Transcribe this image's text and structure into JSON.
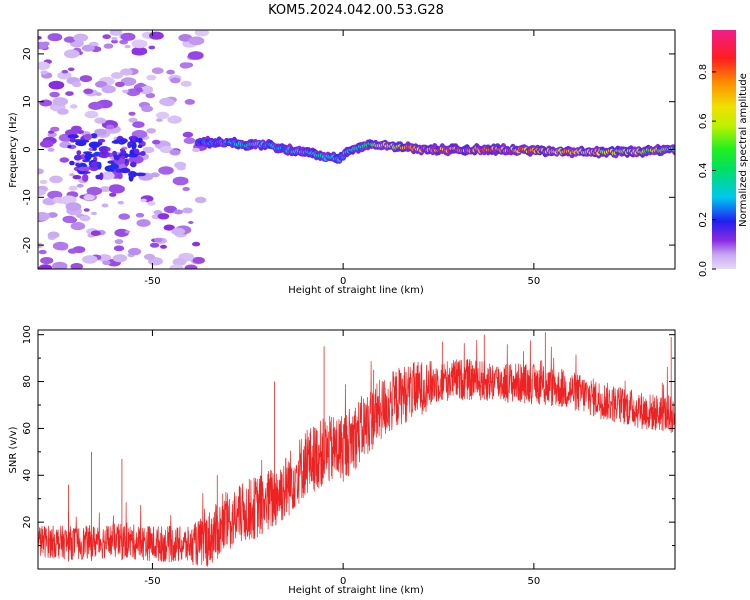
{
  "figure": {
    "title": "KOM5.2024.042.00.53.G28"
  },
  "chart_data": [
    {
      "type": "heatmap",
      "xlabel": "Height of straight line (km)",
      "ylabel": "Frequency (Hz)",
      "xlim": [
        -80,
        87
      ],
      "ylim": [
        -25,
        25
      ],
      "x_ticks": [
        -50,
        0,
        50
      ],
      "y_ticks": [
        -20,
        -10,
        0,
        10,
        20
      ],
      "colorbar": {
        "label": "Normalized spectral amplitude",
        "range": [
          0.0,
          0.97
        ],
        "ticks": [
          0.0,
          0.2,
          0.4,
          0.6,
          0.8
        ],
        "tick_labels": [
          "0.0",
          "0.2",
          "0.4",
          "0.6",
          "0.8"
        ],
        "colormap": "lavender-purple-blue-cyan-green-yellow-orange-red-magenta"
      },
      "ridge": {
        "description_points_x": [
          -38,
          -30,
          -25,
          -20,
          -15,
          -10,
          -5,
          -1,
          2,
          6,
          10,
          20,
          40,
          60,
          75,
          87
        ],
        "description_points_freq": [
          1.5,
          1.5,
          1.0,
          1.0,
          0.0,
          -0.5,
          -1.5,
          -2.0,
          0.0,
          1.0,
          1.0,
          0.0,
          0.0,
          -0.5,
          -0.5,
          0.0
        ],
        "description_points_amp": [
          0.25,
          0.3,
          0.35,
          0.3,
          0.3,
          0.35,
          0.35,
          0.3,
          0.35,
          0.45,
          0.6,
          0.85,
          0.85,
          0.75,
          0.7,
          0.5
        ]
      }
    },
    {
      "type": "line",
      "xlabel": "Height of straight line (km)",
      "ylabel": "SNR (v/v)",
      "xlim": [
        -80,
        87
      ],
      "ylim": [
        0,
        102
      ],
      "x_ticks": [
        -50,
        0,
        50
      ],
      "y_ticks": [
        20,
        40,
        60,
        80,
        100
      ],
      "series": [
        {
          "color": "#ee2222",
          "trend_x": [
            -80,
            -70,
            -60,
            -50,
            -40,
            -36,
            -30,
            -25,
            -20,
            -15,
            -10,
            -5,
            0,
            5,
            10,
            15,
            20,
            25,
            30,
            40,
            50,
            60,
            70,
            80,
            87
          ],
          "trend_y": [
            12,
            11,
            12,
            11,
            10,
            12,
            20,
            25,
            28,
            35,
            45,
            50,
            52,
            60,
            68,
            74,
            77,
            80,
            81,
            80,
            79,
            76,
            71,
            67,
            66
          ],
          "spread_x": [
            -80,
            -40,
            -36,
            -20,
            0,
            20,
            25,
            87
          ],
          "spread_y": [
            7,
            8,
            12,
            14,
            15,
            12,
            9,
            8
          ],
          "spikes": [
            {
              "x": -72,
              "y": 36
            },
            {
              "x": -66,
              "y": 50
            },
            {
              "x": -58,
              "y": 47
            },
            {
              "x": -33,
              "y": 40
            },
            {
              "x": -18,
              "y": 80
            },
            {
              "x": -5,
              "y": 95
            },
            {
              "x": 8,
              "y": 85
            },
            {
              "x": 26,
              "y": 97
            },
            {
              "x": 37,
              "y": 100
            },
            {
              "x": 53,
              "y": 101
            },
            {
              "x": 86,
              "y": 99
            }
          ]
        }
      ]
    }
  ]
}
